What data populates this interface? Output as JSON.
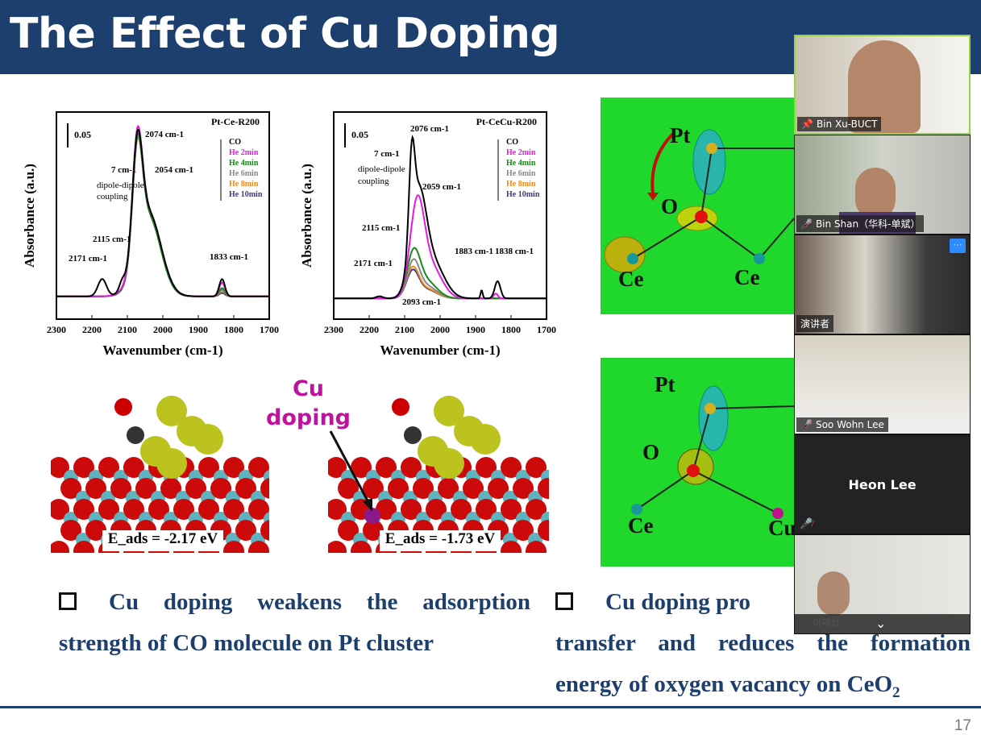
{
  "slide": {
    "title": "The Effect of Cu Doping",
    "page_number": "17",
    "cu_doping_label_line1": "Cu",
    "cu_doping_label_line2": "doping",
    "eads_left": "E_ads = -2.17 eV",
    "eads_right": "E_ads = -1.73 eV",
    "dft_top_labels": {
      "pt": "Pt",
      "o": "O",
      "ce1": "Ce",
      "ce2": "Ce"
    },
    "dft_bottom_labels": {
      "pt": "Pt",
      "o": "O",
      "ce": "Ce",
      "cu": "Cu"
    },
    "bullet_left": "Cu doping weakens the adsorption strength of CO molecule on Pt cluster",
    "bullet_right_visible_start": "Cu doping pro",
    "bullet_right_rest": "transfer and reduces the formation energy of oxygen vacancy on CeO",
    "bullet_right_subscript": "2"
  },
  "chart_data": [
    {
      "type": "line",
      "title": "Pt-Ce-R200",
      "xlabel": "Wavenumber (cm-1)",
      "ylabel": "Absorbance (a.u.)",
      "xlim": [
        2300,
        1700
      ],
      "x_reversed": true,
      "ylim": [
        -0.033,
        0.267
      ],
      "xticks": [
        2300,
        2200,
        2100,
        2000,
        1900,
        1800,
        1700
      ],
      "scale_bar": "0.05",
      "annotations": [
        "2074 cm-1",
        "2054 cm-1",
        "7 cm-1",
        "dipole-dipole",
        "coupling",
        "2115 cm-1",
        "2171 cm-1",
        "1833 cm-1"
      ],
      "legend_header": "CO",
      "legend_position": "top-right",
      "series": [
        {
          "name": "CO",
          "color": "#000000",
          "peaks": [
            [
              2171,
              0.025,
              12
            ],
            [
              2115,
              0.012,
              8
            ],
            [
              2072,
              0.16,
              14
            ],
            [
              2040,
              0.12,
              35
            ],
            [
              1833,
              0.025,
              8
            ]
          ]
        },
        {
          "name": "He 2min",
          "color": "#e619e6",
          "peaks": [
            [
              2072,
              0.165,
              14
            ],
            [
              2040,
              0.12,
              35
            ],
            [
              1833,
              0.02,
              8
            ]
          ]
        },
        {
          "name": "He 4min",
          "color": "#1a8a1a",
          "peaks": [
            [
              2072,
              0.16,
              14
            ],
            [
              2040,
              0.115,
              34
            ],
            [
              1833,
              0.012,
              8
            ]
          ]
        },
        {
          "name": "He 6min",
          "color": "#888888",
          "peaks": [
            [
              2072,
              0.155,
              14
            ],
            [
              2040,
              0.115,
              34
            ],
            [
              1833,
              0.01,
              8
            ]
          ]
        },
        {
          "name": "He 8min",
          "color": "#f08a1c",
          "peaks": [
            [
              2072,
              0.15,
              14
            ],
            [
              2040,
              0.118,
              35
            ],
            [
              1833,
              0.008,
              8
            ]
          ]
        },
        {
          "name": "He 10min",
          "color": "#3a3a8c",
          "peaks": [
            [
              2072,
              0.155,
              14
            ],
            [
              2040,
              0.115,
              34
            ],
            [
              1833,
              0.005,
              8
            ]
          ]
        }
      ]
    },
    {
      "type": "line",
      "title": "Pt-CeCu-R200",
      "xlabel": "Wavenumber (cm-1)",
      "ylabel": "Absorbance (a.u.)",
      "xlim": [
        2300,
        1700
      ],
      "x_reversed": true,
      "ylim": [
        -0.03,
        0.27
      ],
      "xticks": [
        2300,
        2200,
        2100,
        2000,
        1900,
        1800,
        1700
      ],
      "scale_bar": "0.05",
      "annotations": [
        "2076 cm-1",
        "7 cm-1",
        "dipole-dipole",
        "coupling",
        "2059 cm-1",
        "2115 cm-1",
        "2171 cm-1",
        "2093 cm-1",
        "1883 cm-1",
        "1838 cm-1"
      ],
      "legend_header": "CO",
      "legend_position": "top-right",
      "series": [
        {
          "name": "CO",
          "color": "#000000",
          "peaks": [
            [
              2171,
              0.003,
              10
            ],
            [
              2080,
              0.12,
              8
            ],
            [
              2062,
              0.14,
              22
            ],
            [
              2020,
              0.05,
              32
            ],
            [
              1883,
              0.012,
              3
            ],
            [
              1838,
              0.025,
              8
            ]
          ]
        },
        {
          "name": "He 2min",
          "color": "#e619e6",
          "peaks": [
            [
              2065,
              0.13,
              20
            ],
            [
              2025,
              0.045,
              30
            ],
            [
              1843,
              0.007,
              6
            ]
          ]
        },
        {
          "name": "He 4min",
          "color": "#1a8a1a",
          "peaks": [
            [
              2075,
              0.06,
              18
            ],
            [
              2040,
              0.025,
              30
            ]
          ]
        },
        {
          "name": "He 6min",
          "color": "#888888",
          "peaks": [
            [
              2076,
              0.048,
              17
            ],
            [
              2040,
              0.018,
              30
            ]
          ]
        },
        {
          "name": "He 8min",
          "color": "#f08a1c",
          "peaks": [
            [
              2078,
              0.04,
              17
            ],
            [
              2040,
              0.014,
              30
            ]
          ]
        },
        {
          "name": "He 10min",
          "color": "#3a3a8c",
          "peaks": [
            [
              2078,
              0.036,
              17
            ],
            [
              2040,
              0.013,
              30
            ]
          ]
        }
      ]
    }
  ],
  "video": {
    "participants": [
      {
        "name": "Bin Xu-BUCT",
        "icon": "pin-icon",
        "active": true
      },
      {
        "name": "Bin Shan（华科-单斌）",
        "icon": "mic-muted-icon"
      },
      {
        "name": "演讲者",
        "icon": "",
        "more_button": "···"
      },
      {
        "name": "Soo Wohn Lee",
        "icon": "mic-muted-icon"
      },
      {
        "name": "Heon Lee",
        "icon": "mic-muted-icon",
        "video_off": true
      },
      {
        "name": "이재성",
        "icon": ""
      }
    ],
    "scroll_down": "⌄"
  }
}
